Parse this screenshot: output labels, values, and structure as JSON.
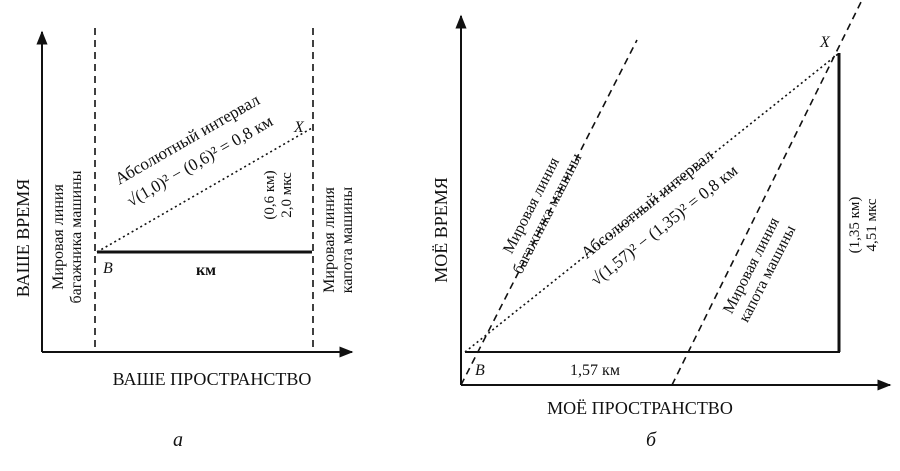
{
  "diagram_a": {
    "b_label": "B",
    "x_label": "X",
    "km_label": "км",
    "interval_heading": "Абсолютный интервал",
    "interval_formula": "√(1,0)² − (0,6)² = 0,8 км",
    "coords_line1": "(0,6 км)",
    "coords_line2": "2,0 мкс",
    "trunk_line_1": "Мировая линия",
    "trunk_line_2": "багажника машины",
    "hood_line_1": "Мировая линия",
    "hood_line_2": "капота машины",
    "y_axis": "ВАШЕ ВРЕМЯ",
    "x_axis": "ВАШЕ ПРОСТРАНСТВО",
    "caption": "а"
  },
  "diagram_b": {
    "b_label": "B",
    "x_label": "X",
    "km_label": "1,57 км",
    "interval_heading": "Абсолютный интервал",
    "interval_formula": "√(1,57)² − (1,35)² = 0,8 км",
    "coords_line1": "(1,35 км)",
    "coords_line2": "4,51 мкс",
    "trunk_line_1": "Мировая линия",
    "trunk_line_2": "багажника машины",
    "hood_line_1": "Мировая линия",
    "hood_line_2": "капота машины",
    "y_axis": "МОЁ ВРЕМЯ",
    "x_axis": "МОЁ ПРОСТРАНСТВО",
    "caption": "б"
  }
}
